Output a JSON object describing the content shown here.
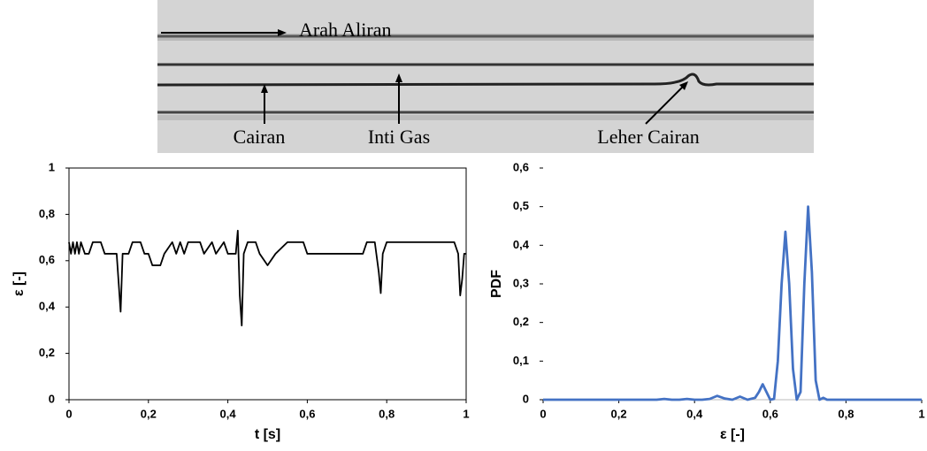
{
  "photo": {
    "labels": [
      "Arah Aliran",
      "Cairan",
      "Inti Gas",
      "Leher Cairan"
    ]
  },
  "chart_data": [
    {
      "type": "line",
      "xlabel": "t [s]",
      "ylabel": "ε [-]",
      "color": "#000000",
      "xlim": [
        0,
        1
      ],
      "ylim": [
        0,
        1
      ],
      "xticks": [
        0,
        {
          "value": 0.2,
          "label": "0,2"
        },
        {
          "value": 0.4,
          "label": "0,4"
        },
        {
          "value": 0.6,
          "label": "0,6"
        },
        {
          "value": 0.8,
          "label": "0,8"
        },
        1
      ],
      "yticks": [
        0,
        {
          "value": 0.2,
          "label": "0,2"
        },
        {
          "value": 0.4,
          "label": "0,4"
        },
        {
          "value": 0.6,
          "label": "0,6"
        },
        {
          "value": 0.8,
          "label": "0,8"
        },
        1
      ],
      "x": [
        0,
        0.005,
        0.01,
        0.015,
        0.02,
        0.025,
        0.03,
        0.04,
        0.05,
        0.06,
        0.08,
        0.09,
        0.12,
        0.13,
        0.135,
        0.15,
        0.16,
        0.18,
        0.19,
        0.2,
        0.21,
        0.23,
        0.24,
        0.26,
        0.27,
        0.28,
        0.29,
        0.3,
        0.33,
        0.34,
        0.36,
        0.37,
        0.39,
        0.4,
        0.42,
        0.425,
        0.43,
        0.435,
        0.44,
        0.45,
        0.47,
        0.48,
        0.5,
        0.52,
        0.55,
        0.59,
        0.6,
        0.74,
        0.75,
        0.77,
        0.78,
        0.785,
        0.79,
        0.8,
        0.97,
        0.98,
        0.985,
        0.99,
        0.995,
        1
      ],
      "values": [
        0.68,
        0.63,
        0.68,
        0.63,
        0.68,
        0.63,
        0.68,
        0.63,
        0.63,
        0.68,
        0.68,
        0.63,
        0.63,
        0.38,
        0.63,
        0.63,
        0.68,
        0.68,
        0.63,
        0.63,
        0.58,
        0.58,
        0.63,
        0.68,
        0.63,
        0.68,
        0.63,
        0.68,
        0.68,
        0.63,
        0.68,
        0.63,
        0.68,
        0.63,
        0.63,
        0.73,
        0.45,
        0.32,
        0.63,
        0.68,
        0.68,
        0.63,
        0.58,
        0.63,
        0.68,
        0.68,
        0.63,
        0.63,
        0.68,
        0.68,
        0.55,
        0.46,
        0.63,
        0.68,
        0.68,
        0.63,
        0.45,
        0.52,
        0.63,
        0.63
      ]
    },
    {
      "type": "line",
      "xlabel": "ε [-]",
      "ylabel": "PDF",
      "color": "#4472c4",
      "xlim": [
        0,
        1
      ],
      "ylim": [
        0,
        0.6
      ],
      "xticks": [
        0,
        {
          "value": 0.2,
          "label": "0,2"
        },
        {
          "value": 0.4,
          "label": "0,4"
        },
        {
          "value": 0.6,
          "label": "0,6"
        },
        {
          "value": 0.8,
          "label": "0,8"
        },
        1
      ],
      "yticks": [
        0,
        {
          "value": 0.1,
          "label": "0,1"
        },
        {
          "value": 0.2,
          "label": "0,2"
        },
        {
          "value": 0.3,
          "label": "0,3"
        },
        {
          "value": 0.4,
          "label": "0,4"
        },
        {
          "value": 0.5,
          "label": "0,5"
        },
        {
          "value": 0.6,
          "label": "0,6"
        }
      ],
      "x": [
        0,
        0.3,
        0.32,
        0.34,
        0.36,
        0.38,
        0.4,
        0.42,
        0.44,
        0.46,
        0.48,
        0.5,
        0.52,
        0.54,
        0.56,
        0.57,
        0.58,
        0.59,
        0.6,
        0.61,
        0.62,
        0.63,
        0.64,
        0.65,
        0.66,
        0.67,
        0.68,
        0.69,
        0.7,
        0.71,
        0.72,
        0.73,
        0.74,
        0.75,
        0.76,
        0.8,
        1
      ],
      "values": [
        0,
        0,
        0.002,
        0,
        0,
        0.002,
        0,
        0,
        0.002,
        0.01,
        0.003,
        0,
        0.008,
        0,
        0.005,
        0.02,
        0.04,
        0.02,
        0,
        0.002,
        0.1,
        0.3,
        0.435,
        0.3,
        0.08,
        0,
        0.02,
        0.3,
        0.5,
        0.33,
        0.05,
        0,
        0.005,
        0,
        0,
        0,
        0
      ]
    }
  ]
}
